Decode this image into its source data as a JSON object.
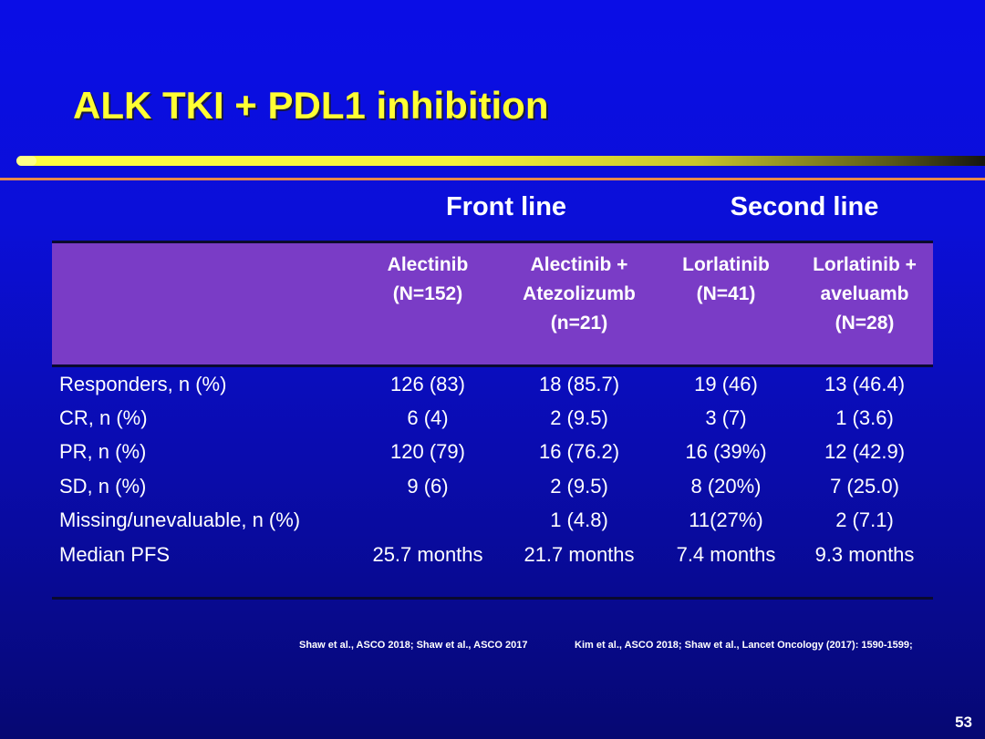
{
  "slide": {
    "title": "ALK TKI + PDL1 inhibition",
    "page_number": "53"
  },
  "groups": {
    "front": "Front line",
    "second": "Second line"
  },
  "table": {
    "headers": [
      "",
      "Alectinib\n(N=152)",
      "Alectinib +\nAtezolizumb\n(n=21)",
      "Lorlatinib\n(N=41)",
      "Lorlatinib +\naveluamb\n(N=28)"
    ],
    "rows": [
      {
        "label": "Responders, n (%)",
        "values": [
          "126 (83)",
          "18 (85.7)",
          "19 (46)",
          "13 (46.4)"
        ]
      },
      {
        "label": "CR, n (%)",
        "values": [
          "6 (4)",
          "2 (9.5)",
          "3 (7)",
          "1 (3.6)"
        ]
      },
      {
        "label": "PR, n (%)",
        "values": [
          "120 (79)",
          "16 (76.2)",
          "16 (39%)",
          "12 (42.9)"
        ]
      },
      {
        "label": "SD, n (%)",
        "values": [
          "9 (6)",
          "2 (9.5)",
          "8 (20%)",
          "7 (25.0)"
        ]
      },
      {
        "label": "Missing/unevaluable, n (%)",
        "values": [
          "",
          "1 (4.8)",
          "11(27%)",
          "2 (7.1)"
        ]
      },
      {
        "label": "Median PFS",
        "values": [
          "25.7 months",
          "21.7 months",
          "7.4 months",
          "9.3 months"
        ]
      }
    ]
  },
  "citations": {
    "left": "Shaw et al., ASCO 2018;  Shaw et al., ASCO 2017",
    "right": "Kim et al., ASCO 2018;  Shaw et al., Lancet Oncology  (2017):  1590-1599;"
  },
  "colors": {
    "title": "#ffff33",
    "header_fill": "#7a3cc6",
    "divider": "#e98a4a"
  }
}
